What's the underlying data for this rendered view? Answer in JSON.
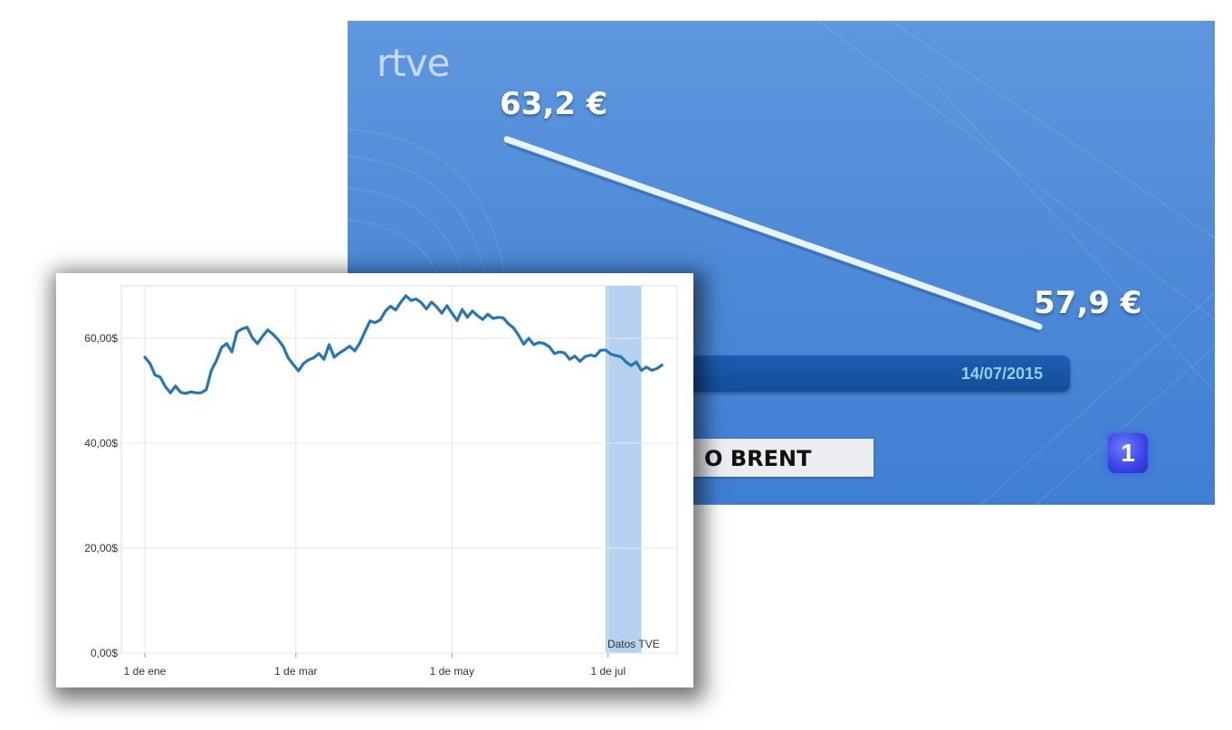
{
  "tv": {
    "logo": "rtve",
    "start_value_label": "63,2 €",
    "end_value_label": "57,9 €",
    "date": "14/07/2015",
    "title_fragment": "O BRENT",
    "channel": "1",
    "colors": {
      "background": "#4f8bd8",
      "date_bar": "#1a56a6",
      "date_text": "#8fd0f5",
      "channel_badge": "#3a44e6"
    }
  },
  "chart_data": {
    "type": "line",
    "xlabel": "",
    "ylabel": "",
    "ylim": [
      0,
      70
    ],
    "yticks": [
      0,
      20,
      40,
      60
    ],
    "ytick_labels": [
      "0,00$",
      "20,00$",
      "40,00$",
      "60,00$"
    ],
    "xtick_labels": [
      "1 de ene",
      "1 de mar",
      "1 de may",
      "1 de jul"
    ],
    "xtick_positions": [
      "2015-01-01",
      "2015-03-01",
      "2015-05-01",
      "2015-07-01"
    ],
    "xlim": [
      "2015-01-01",
      "2015-07-23"
    ],
    "grid": true,
    "line_color": "#2777b4",
    "highlight": {
      "start": "2015-06-30",
      "end": "2015-07-14",
      "color": "#b7d1f0",
      "label": "Datos TVE"
    },
    "series": [
      {
        "x": [
          "2015-01-01",
          "2015-01-03",
          "2015-01-05",
          "2015-01-07",
          "2015-01-09",
          "2015-01-11",
          "2015-01-13",
          "2015-01-15",
          "2015-01-17",
          "2015-01-19",
          "2015-01-21",
          "2015-01-23",
          "2015-01-25",
          "2015-01-27",
          "2015-01-29",
          "2015-01-31",
          "2015-02-02",
          "2015-02-04",
          "2015-02-06",
          "2015-02-08",
          "2015-02-10",
          "2015-02-12",
          "2015-02-14",
          "2015-02-16",
          "2015-02-18",
          "2015-02-20",
          "2015-02-22",
          "2015-02-24",
          "2015-02-26",
          "2015-02-28",
          "2015-03-02",
          "2015-03-04",
          "2015-03-06",
          "2015-03-08",
          "2015-03-10",
          "2015-03-12",
          "2015-03-14",
          "2015-03-16",
          "2015-03-18",
          "2015-03-20",
          "2015-03-22",
          "2015-03-24",
          "2015-03-26",
          "2015-03-28",
          "2015-03-30",
          "2015-04-01",
          "2015-04-03",
          "2015-04-05",
          "2015-04-07",
          "2015-04-09",
          "2015-04-11",
          "2015-04-13",
          "2015-04-15",
          "2015-04-17",
          "2015-04-19",
          "2015-04-21",
          "2015-04-23",
          "2015-04-25",
          "2015-04-27",
          "2015-04-29",
          "2015-05-01",
          "2015-05-03",
          "2015-05-05",
          "2015-05-07",
          "2015-05-09",
          "2015-05-11",
          "2015-05-13",
          "2015-05-15",
          "2015-05-17",
          "2015-05-19",
          "2015-05-21",
          "2015-05-23",
          "2015-05-25",
          "2015-05-27",
          "2015-05-29",
          "2015-05-31",
          "2015-06-02",
          "2015-06-04",
          "2015-06-06",
          "2015-06-08",
          "2015-06-10",
          "2015-06-12",
          "2015-06-14",
          "2015-06-16",
          "2015-06-18",
          "2015-06-20",
          "2015-06-22",
          "2015-06-24",
          "2015-06-26",
          "2015-06-28",
          "2015-06-30",
          "2015-07-02",
          "2015-07-04",
          "2015-07-06",
          "2015-07-08",
          "2015-07-10",
          "2015-07-12",
          "2015-07-14",
          "2015-07-16",
          "2015-07-18",
          "2015-07-20",
          "2015-07-22"
        ],
        "y": [
          56.4,
          55.2,
          53.0,
          52.6,
          50.8,
          49.6,
          50.9,
          49.7,
          49.5,
          49.8,
          49.6,
          49.6,
          50.2,
          53.9,
          55.8,
          58.3,
          59.0,
          57.4,
          61.2,
          61.8,
          62.1,
          60.1,
          59.0,
          60.4,
          61.6,
          60.8,
          59.8,
          58.5,
          56.3,
          55.0,
          53.8,
          55.2,
          55.9,
          56.3,
          57.1,
          56.0,
          58.8,
          56.4,
          57.2,
          57.8,
          58.5,
          57.6,
          59.1,
          61.3,
          63.3,
          63.0,
          63.5,
          65.2,
          66.1,
          65.4,
          66.9,
          68.1,
          67.2,
          67.5,
          66.8,
          65.6,
          66.9,
          66.0,
          64.8,
          66.2,
          64.8,
          63.4,
          65.5,
          64.0,
          65.2,
          64.3,
          63.6,
          64.6,
          63.8,
          64.0,
          63.9,
          62.8,
          62.0,
          60.6,
          58.9,
          60.0,
          58.8,
          59.2,
          59.0,
          58.4,
          57.1,
          57.4,
          57.2,
          56.0,
          56.6,
          55.6,
          56.5,
          56.8,
          56.6,
          57.7,
          57.8,
          57.0,
          56.7,
          56.5,
          55.5,
          54.8,
          55.5,
          53.9,
          54.5,
          53.9,
          54.2,
          54.9
        ]
      }
    ]
  }
}
